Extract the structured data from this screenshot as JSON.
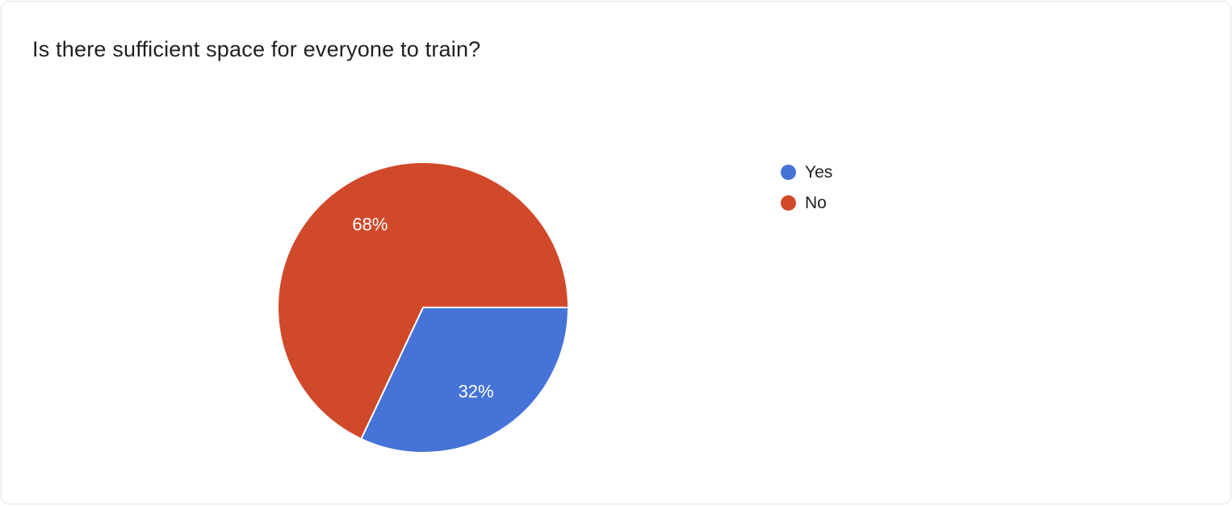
{
  "chart_data": {
    "type": "pie",
    "title": "Is there sufficient space for everyone to train?",
    "start_angle_deg": 0,
    "legend_position": "right",
    "label_color": "#ffffff",
    "slices": [
      {
        "label": "Yes",
        "value": 32,
        "text": "32%",
        "color": "#4573d7"
      },
      {
        "label": "No",
        "value": 68,
        "text": "68%",
        "color": "#d0492b"
      }
    ]
  },
  "card": {
    "background": "#ffffff",
    "border_color": "#e3e3e3",
    "title_color": "#202124"
  }
}
